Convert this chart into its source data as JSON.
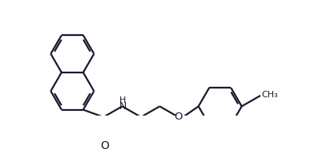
{
  "background_color": "#ffffff",
  "line_color": "#1a1a2e",
  "line_width": 1.6,
  "figsize": [
    3.87,
    1.92
  ],
  "dpi": 100,
  "label_NH": "H",
  "label_N": "N",
  "label_O_carbonyl": "O",
  "label_O_ether": "O",
  "label_CH3": "CH₃"
}
